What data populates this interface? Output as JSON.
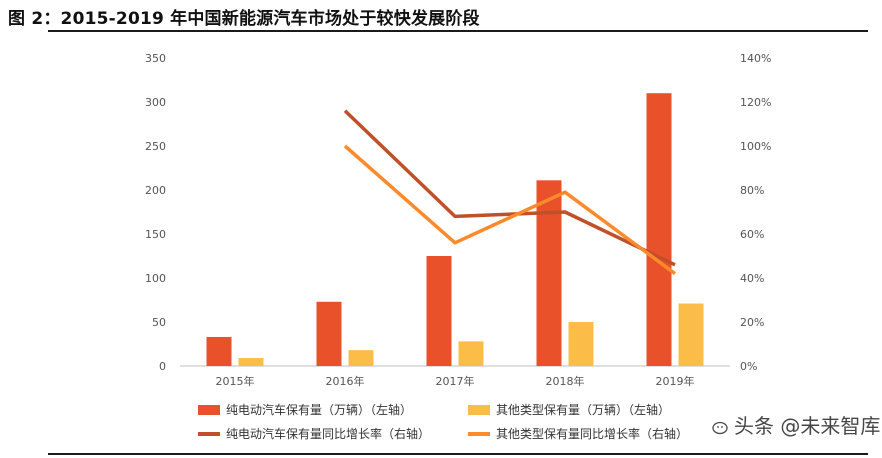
{
  "title": "图 2：2015-2019 年中国新能源汽车市场处于较快发展阶段",
  "watermark": "头条 @未来智库",
  "colors": {
    "ev_bar": "#e8512a",
    "other_bar": "#fbbd47",
    "ev_line": "#c0502a",
    "other_line": "#fd8a2a",
    "axis": "#bfbfbf"
  },
  "chart_data": {
    "type": "bar",
    "categories": [
      "2015年",
      "2016年",
      "2017年",
      "2018年",
      "2019年"
    ],
    "left_axis": {
      "min": 0,
      "max": 350,
      "ticks": [
        0,
        50,
        100,
        150,
        200,
        250,
        300,
        350
      ]
    },
    "right_axis": {
      "min": 0,
      "max": 1.4,
      "ticks": [
        "0%",
        "20%",
        "40%",
        "60%",
        "80%",
        "100%",
        "120%",
        "140%"
      ]
    },
    "series": [
      {
        "name": "纯电动汽车保有量（万辆）（左轴）",
        "type": "bar",
        "axis": "left",
        "values": [
          33,
          73,
          125,
          211,
          310
        ],
        "color": "#e8512a"
      },
      {
        "name": "其他类型保有量（万辆）（左轴）",
        "type": "bar",
        "axis": "left",
        "values": [
          9,
          18,
          28,
          50,
          71
        ],
        "color": "#fbbd47"
      },
      {
        "name": "纯电动汽车保有量同比增长率（右轴）",
        "type": "line",
        "axis": "right",
        "values": [
          null,
          1.16,
          0.68,
          0.7,
          0.46
        ],
        "color": "#c0502a"
      },
      {
        "name": "其他类型保有量同比增长率（右轴）",
        "type": "line",
        "axis": "right",
        "values": [
          null,
          1.0,
          0.56,
          0.79,
          0.42
        ],
        "color": "#fd8a2a"
      }
    ],
    "grid": false,
    "legend_position": "bottom"
  }
}
